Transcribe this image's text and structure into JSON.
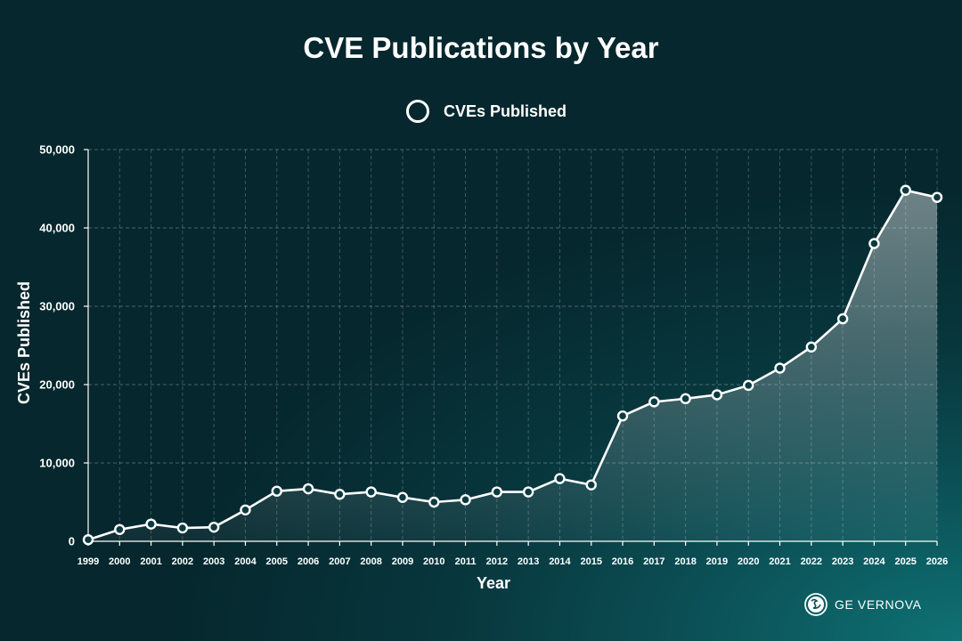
{
  "chart_data": {
    "type": "line",
    "title": "CVE Publications by Year",
    "xlabel": "Year",
    "ylabel": "CVEs Published",
    "legend_position": "top-center",
    "grid": true,
    "ylim": [
      0,
      50000
    ],
    "yticks": [
      "0",
      "10,000",
      "20,000",
      "30,000",
      "40,000",
      "50,000"
    ],
    "ytick_values": [
      0,
      10000,
      20000,
      30000,
      40000,
      50000
    ],
    "categories": [
      "1999",
      "2000",
      "2001",
      "2002",
      "2003",
      "2004",
      "2005",
      "2006",
      "2007",
      "2008",
      "2009",
      "2010",
      "2011",
      "2012",
      "2013",
      "2014",
      "2015",
      "2016",
      "2017",
      "2018",
      "2019",
      "2020",
      "2021",
      "2022",
      "2023",
      "2024",
      "2025",
      "2026"
    ],
    "series": [
      {
        "name": "CVEs Published",
        "color": "#ffffff",
        "values": [
          200,
          1500,
          2200,
          1700,
          1800,
          4000,
          6400,
          6700,
          6000,
          6300,
          5600,
          5000,
          5300,
          6300,
          6300,
          8000,
          7200,
          16000,
          17800,
          18200,
          18700,
          19900,
          22100,
          24800,
          28400,
          38000,
          44800,
          43900
        ]
      }
    ]
  },
  "brand": {
    "name": "GE VERNOVA",
    "logo_icon": "ge-monogram-icon"
  },
  "colors": {
    "background_dark": "#05272d",
    "background_light": "#0e7173",
    "line": "#ffffff",
    "marker_fill": "#0b3a40"
  }
}
